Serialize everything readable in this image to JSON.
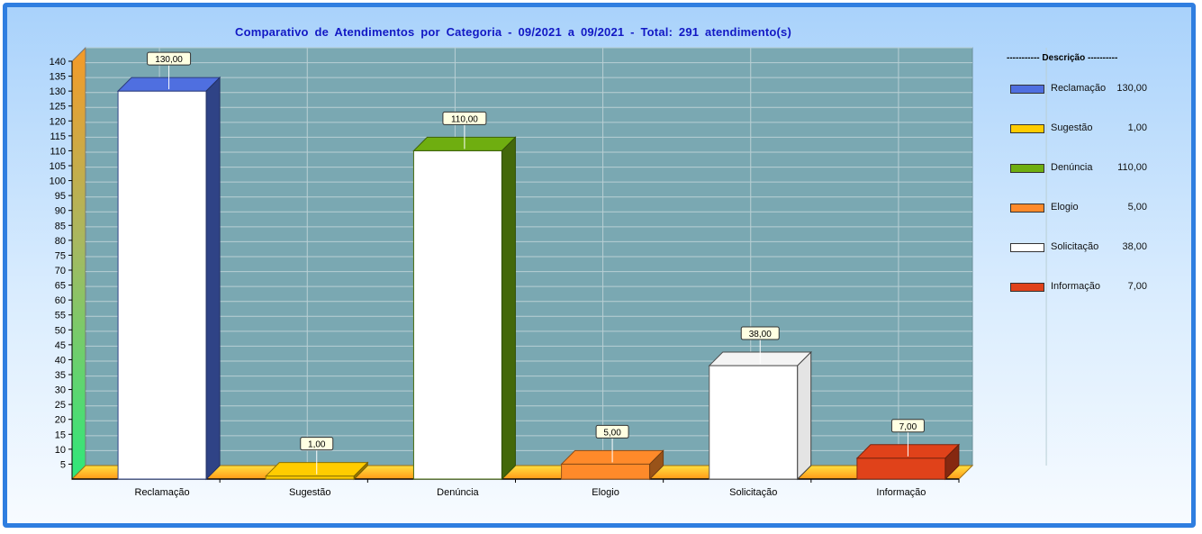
{
  "chart_data": {
    "type": "bar",
    "title": "Comparativo de Atendimentos por Categoria - 09/2021 a 09/2021 - Total: 291 atendimento(s)",
    "categories": [
      "Reclamação",
      "Sugestão",
      "Denúncia",
      "Elogio",
      "Solicitação",
      "Informação"
    ],
    "values": [
      130,
      1,
      110,
      5,
      38,
      7
    ],
    "value_labels": [
      "130,00",
      "1,00",
      "110,00",
      "5,00",
      "38,00",
      "7,00"
    ],
    "colors": [
      "#4f6fe0",
      "#ffcc00",
      "#6fae10",
      "#ff8a2a",
      "#ffffff",
      "#e0421a"
    ],
    "ylim": [
      0,
      140
    ],
    "yticks": [
      5,
      10,
      15,
      20,
      25,
      30,
      35,
      40,
      45,
      50,
      55,
      60,
      65,
      70,
      75,
      80,
      85,
      90,
      95,
      100,
      105,
      110,
      115,
      120,
      125,
      130,
      135,
      140
    ],
    "grid": true,
    "legend": {
      "title": "----------- Descrição ----------",
      "placement": "right"
    }
  }
}
